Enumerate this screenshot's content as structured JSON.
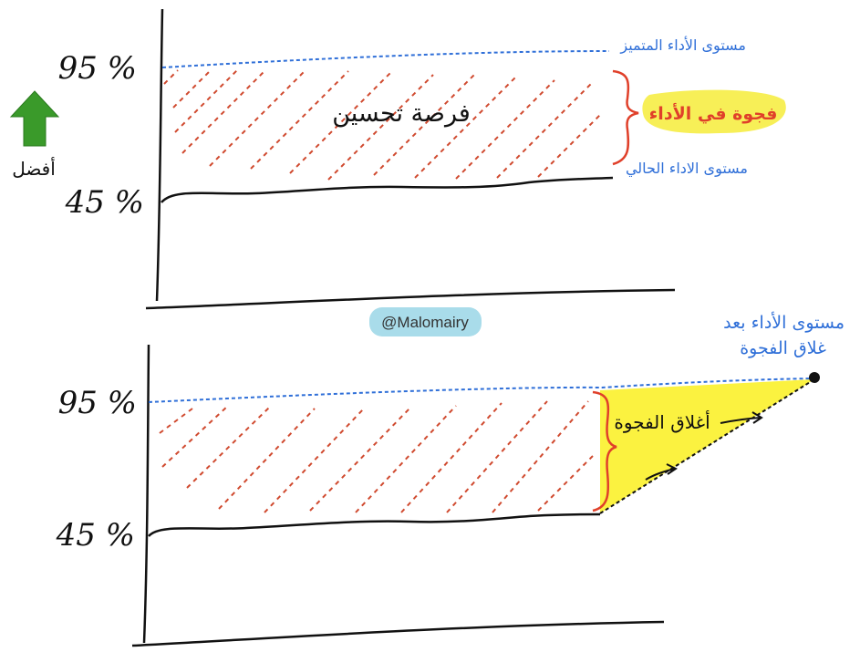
{
  "colors": {
    "target_line": "#2f6fd8",
    "current_line": "#111111",
    "hatch": "#d04a2f",
    "brace": "#e0402a",
    "highlight": "#f7ef57",
    "gap_fill": "#fbf240",
    "watermark_bg": "#a9dcea",
    "arrow_green": "#3a9a2a"
  },
  "icons": {
    "better_arrow": "arrow-up-icon"
  },
  "labels": {
    "better": "أفضل",
    "watermark": "@Malomairy"
  },
  "top_diagram": {
    "pct_high": "95 %",
    "pct_low": "45 %",
    "target_level": "مستوى الأداء المتميز",
    "current_level": "مستوى الاداء الحالي",
    "gap_label": "فجوة في الأداء",
    "opportunity_label": "فرصة تحسين"
  },
  "bottom_diagram": {
    "pct_high": "95 %",
    "pct_low": "45 %",
    "closing_label": "أغلاق الفجوة",
    "after_line1": "مستوى الأداء بعد",
    "after_line2": "غلاق الفجوة"
  }
}
